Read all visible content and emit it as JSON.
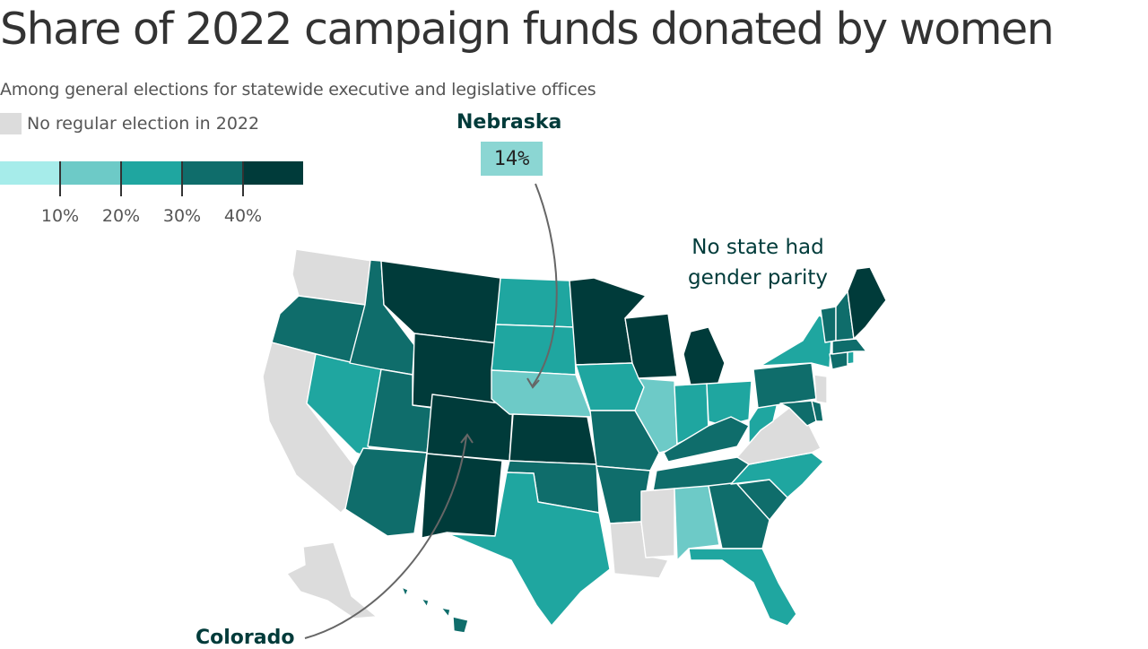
{
  "title": "Share of 2022 campaign funds donated by women",
  "subtitle": "Among general elections for statewide executive and legislative offices",
  "legend": {
    "no_election_label": "No regular election in 2022",
    "tick_labels": [
      "10%",
      "20%",
      "30%",
      "40%"
    ],
    "bins": [
      {
        "range": "<10%",
        "color": "#a6ecea"
      },
      {
        "range": "10–20%",
        "color": "#6dcac7"
      },
      {
        "range": "20–30%",
        "color": "#1fa6a0"
      },
      {
        "range": "30–40%",
        "color": "#0f6d6b"
      },
      {
        "range": "40%+",
        "color": "#003b3a"
      }
    ]
  },
  "colors": {
    "no_election": "#dcdcdc"
  },
  "annotations": {
    "nebraska_name": "Nebraska",
    "nebraska_value": "14%",
    "parity_note": "No state had gender parity",
    "colorado_name": "Colorado"
  },
  "map_data": {
    "unit": "share of 2022 campaign funds donated by women, binned",
    "states": [
      {
        "state": "WA",
        "bin": "none"
      },
      {
        "state": "OR",
        "bin": "30-40"
      },
      {
        "state": "CA",
        "bin": "none"
      },
      {
        "state": "NV",
        "bin": "20-30"
      },
      {
        "state": "ID",
        "bin": "30-40"
      },
      {
        "state": "MT",
        "bin": "40+"
      },
      {
        "state": "WY",
        "bin": "40+"
      },
      {
        "state": "UT",
        "bin": "30-40"
      },
      {
        "state": "AZ",
        "bin": "30-40"
      },
      {
        "state": "CO",
        "bin": "40+"
      },
      {
        "state": "NM",
        "bin": "40+"
      },
      {
        "state": "ND",
        "bin": "20-30"
      },
      {
        "state": "SD",
        "bin": "20-30"
      },
      {
        "state": "NE",
        "bin": "10-20"
      },
      {
        "state": "KS",
        "bin": "40+"
      },
      {
        "state": "OK",
        "bin": "30-40"
      },
      {
        "state": "TX",
        "bin": "20-30"
      },
      {
        "state": "MN",
        "bin": "40+"
      },
      {
        "state": "IA",
        "bin": "20-30"
      },
      {
        "state": "MO",
        "bin": "30-40"
      },
      {
        "state": "AR",
        "bin": "30-40"
      },
      {
        "state": "LA",
        "bin": "none"
      },
      {
        "state": "WI",
        "bin": "40+"
      },
      {
        "state": "IL",
        "bin": "10-20"
      },
      {
        "state": "MI",
        "bin": "40+"
      },
      {
        "state": "IN",
        "bin": "20-30"
      },
      {
        "state": "OH",
        "bin": "20-30"
      },
      {
        "state": "KY",
        "bin": "30-40"
      },
      {
        "state": "TN",
        "bin": "30-40"
      },
      {
        "state": "MS",
        "bin": "none"
      },
      {
        "state": "AL",
        "bin": "10-20"
      },
      {
        "state": "GA",
        "bin": "30-40"
      },
      {
        "state": "FL",
        "bin": "20-30"
      },
      {
        "state": "SC",
        "bin": "30-40"
      },
      {
        "state": "NC",
        "bin": "20-30"
      },
      {
        "state": "VA",
        "bin": "none"
      },
      {
        "state": "WV",
        "bin": "20-30"
      },
      {
        "state": "PA",
        "bin": "30-40"
      },
      {
        "state": "NY",
        "bin": "20-30"
      },
      {
        "state": "NJ",
        "bin": "none"
      },
      {
        "state": "MD",
        "bin": "30-40"
      },
      {
        "state": "DE",
        "bin": "30-40"
      },
      {
        "state": "CT",
        "bin": "30-40"
      },
      {
        "state": "RI",
        "bin": "20-30"
      },
      {
        "state": "MA",
        "bin": "30-40"
      },
      {
        "state": "VT",
        "bin": "30-40"
      },
      {
        "state": "NH",
        "bin": "30-40"
      },
      {
        "state": "ME",
        "bin": "40+"
      },
      {
        "state": "AK",
        "bin": "none"
      },
      {
        "state": "HI",
        "bin": "30-40"
      }
    ]
  }
}
